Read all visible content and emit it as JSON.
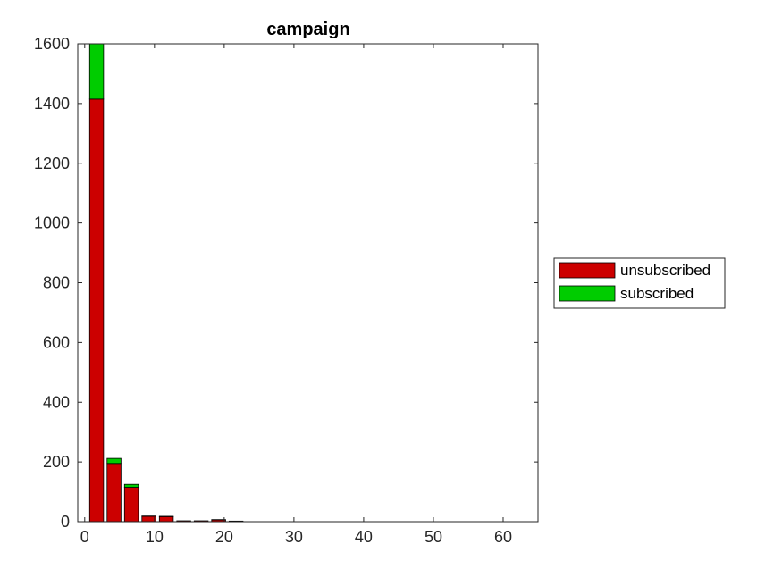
{
  "chart_data": {
    "type": "bar",
    "stacked": true,
    "title": "campaign",
    "xlabel": "",
    "ylabel": "",
    "xlim": [
      -1,
      65
    ],
    "ylim": [
      0,
      1600
    ],
    "xticks": [
      0,
      10,
      20,
      30,
      40,
      50,
      60
    ],
    "yticks": [
      0,
      200,
      400,
      600,
      800,
      1000,
      1200,
      1400,
      1600
    ],
    "bin_width": 2.5,
    "x": [
      1.7,
      4.2,
      6.7,
      9.2,
      11.7,
      14.2,
      16.7,
      19.2,
      21.7
    ],
    "series": [
      {
        "name": "unsubscribed",
        "color": "#cc0000",
        "values": [
          1415,
          195,
          115,
          18,
          17,
          3,
          3,
          6,
          2
        ]
      },
      {
        "name": "subscribed",
        "color": "#00cc00",
        "values": [
          185,
          17,
          10,
          1,
          1,
          0,
          0,
          1,
          0
        ]
      }
    ],
    "legend_position": "outside-right",
    "grid": false
  }
}
